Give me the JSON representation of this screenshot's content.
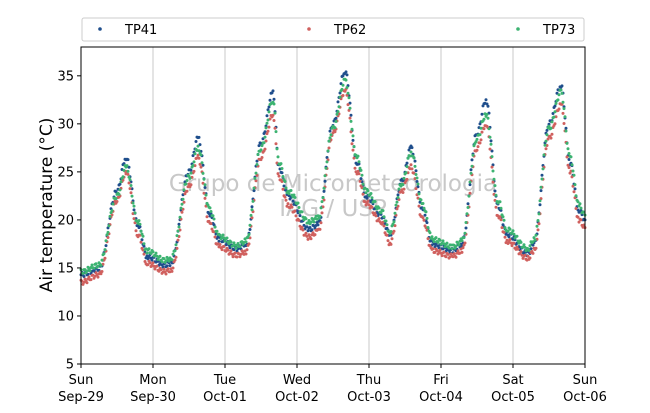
{
  "chart_data": {
    "type": "scatter",
    "title": "",
    "xlabel": "",
    "ylabel": "Air temperature (°C)",
    "ylim": [
      5,
      38
    ],
    "yticks": [
      5,
      10,
      15,
      20,
      25,
      30,
      35
    ],
    "xlim": [
      "2024-09-29 00:00",
      "2024-10-06 00:00"
    ],
    "x_tick_labels": [
      {
        "day": "Sun",
        "date": "Sep-29"
      },
      {
        "day": "Mon",
        "date": "Sep-30"
      },
      {
        "day": "Tue",
        "date": "Oct-01"
      },
      {
        "day": "Wed",
        "date": "Oct-02"
      },
      {
        "day": "Thu",
        "date": "Oct-03"
      },
      {
        "day": "Fri",
        "date": "Oct-04"
      },
      {
        "day": "Sat",
        "date": "Oct-05"
      },
      {
        "day": "Sun",
        "date": "Oct-06"
      }
    ],
    "grid": "vertical",
    "legend_placement": "top",
    "watermark": [
      "Grupo de Micrometeorologia",
      "IAG / USP"
    ],
    "series": [
      {
        "name": "TP41",
        "color": "#1f4e8c",
        "points": [
          [
            "2024-09-29 00:00",
            14.3
          ],
          [
            "2024-09-29 06:00",
            14.9
          ],
          [
            "2024-09-29 12:00",
            23.0
          ],
          [
            "2024-09-29 15:00",
            26.5
          ],
          [
            "2024-09-29 19:00",
            19.5
          ],
          [
            "2024-09-29 22:00",
            16.2
          ],
          [
            "2024-09-30 04:00",
            15.3
          ],
          [
            "2024-09-30 06:00",
            15.5
          ],
          [
            "2024-09-30 12:00",
            25.0
          ],
          [
            "2024-09-30 15:00",
            28.5
          ],
          [
            "2024-09-30 19:00",
            20.5
          ],
          [
            "2024-09-30 22:00",
            18.0
          ],
          [
            "2024-10-01 04:00",
            17.0
          ],
          [
            "2024-10-01 07:00",
            17.5
          ],
          [
            "2024-10-01 12:00",
            28.0
          ],
          [
            "2024-10-01 16:00",
            33.3
          ],
          [
            "2024-10-01 18:00",
            25.5
          ],
          [
            "2024-10-01 21:00",
            22.5
          ],
          [
            "2024-10-02 04:00",
            19.0
          ],
          [
            "2024-10-02 07:00",
            19.5
          ],
          [
            "2024-10-02 12:00",
            30.0
          ],
          [
            "2024-10-02 16:00",
            35.5
          ],
          [
            "2024-10-02 20:00",
            26.0
          ],
          [
            "2024-10-02 23:00",
            22.5
          ],
          [
            "2024-10-03 04:00",
            20.5
          ],
          [
            "2024-10-03 07:00",
            18.5
          ],
          [
            "2024-10-03 11:00",
            24.0
          ],
          [
            "2024-10-03 14:00",
            27.5
          ],
          [
            "2024-10-03 18:00",
            21.0
          ],
          [
            "2024-10-03 21:00",
            17.5
          ],
          [
            "2024-10-04 04:00",
            16.8
          ],
          [
            "2024-10-04 07:00",
            17.5
          ],
          [
            "2024-10-04 12:00",
            29.0
          ],
          [
            "2024-10-04 15:00",
            32.5
          ],
          [
            "2024-10-04 19:00",
            21.5
          ],
          [
            "2024-10-04 22:00",
            18.5
          ],
          [
            "2024-10-05 05:00",
            16.5
          ],
          [
            "2024-10-05 07:00",
            17.5
          ],
          [
            "2024-10-05 12:00",
            30.0
          ],
          [
            "2024-10-05 16:00",
            34.0
          ],
          [
            "2024-10-05 19:00",
            26.0
          ],
          [
            "2024-10-05 22:00",
            21.0
          ],
          [
            "2024-10-06 00:00",
            20.0
          ]
        ]
      },
      {
        "name": "TP62",
        "color": "#d0605e",
        "points": [
          [
            "2024-09-29 00:00",
            13.5
          ],
          [
            "2024-09-29 06:00",
            14.3
          ],
          [
            "2024-09-29 12:00",
            22.0
          ],
          [
            "2024-09-29 15:00",
            25.0
          ],
          [
            "2024-09-29 19:00",
            18.5
          ],
          [
            "2024-09-29 22:00",
            15.5
          ],
          [
            "2024-09-30 04:00",
            14.6
          ],
          [
            "2024-09-30 06:00",
            14.8
          ],
          [
            "2024-09-30 12:00",
            23.5
          ],
          [
            "2024-09-30 15:00",
            26.5
          ],
          [
            "2024-09-30 19:00",
            19.5
          ],
          [
            "2024-09-30 22:00",
            17.2
          ],
          [
            "2024-10-01 04:00",
            16.3
          ],
          [
            "2024-10-01 07:00",
            16.7
          ],
          [
            "2024-10-01 12:00",
            26.5
          ],
          [
            "2024-10-01 16:00",
            31.0
          ],
          [
            "2024-10-01 18:00",
            24.5
          ],
          [
            "2024-10-01 21:00",
            21.5
          ],
          [
            "2024-10-02 04:00",
            18.2
          ],
          [
            "2024-10-02 07:00",
            18.8
          ],
          [
            "2024-10-02 12:00",
            29.0
          ],
          [
            "2024-10-02 16:00",
            33.5
          ],
          [
            "2024-10-02 20:00",
            25.0
          ],
          [
            "2024-10-02 23:00",
            21.8
          ],
          [
            "2024-10-03 04:00",
            19.8
          ],
          [
            "2024-10-03 07:00",
            17.6
          ],
          [
            "2024-10-03 11:00",
            23.0
          ],
          [
            "2024-10-03 14:00",
            25.5
          ],
          [
            "2024-10-03 18:00",
            20.0
          ],
          [
            "2024-10-03 21:00",
            16.8
          ],
          [
            "2024-10-04 04:00",
            16.2
          ],
          [
            "2024-10-04 07:00",
            16.8
          ],
          [
            "2024-10-04 12:00",
            27.5
          ],
          [
            "2024-10-04 15:00",
            30.0
          ],
          [
            "2024-10-04 19:00",
            20.5
          ],
          [
            "2024-10-04 22:00",
            17.8
          ],
          [
            "2024-10-05 05:00",
            16.0
          ],
          [
            "2024-10-05 07:00",
            16.8
          ],
          [
            "2024-10-05 12:00",
            28.5
          ],
          [
            "2024-10-05 16:00",
            32.0
          ],
          [
            "2024-10-05 19:00",
            25.0
          ],
          [
            "2024-10-05 22:00",
            20.0
          ],
          [
            "2024-10-06 00:00",
            19.2
          ]
        ]
      },
      {
        "name": "TP73",
        "color": "#3cb371",
        "points": [
          [
            "2024-09-29 00:00",
            14.6
          ],
          [
            "2024-09-29 06:00",
            15.3
          ],
          [
            "2024-09-29 12:00",
            22.5
          ],
          [
            "2024-09-29 15:00",
            25.5
          ],
          [
            "2024-09-29 19:00",
            19.8
          ],
          [
            "2024-09-29 22:00",
            16.8
          ],
          [
            "2024-09-30 04:00",
            15.8
          ],
          [
            "2024-09-30 06:00",
            16.0
          ],
          [
            "2024-09-30 12:00",
            24.5
          ],
          [
            "2024-09-30 15:00",
            27.5
          ],
          [
            "2024-09-30 19:00",
            21.0
          ],
          [
            "2024-09-30 22:00",
            18.3
          ],
          [
            "2024-10-01 04:00",
            17.3
          ],
          [
            "2024-10-01 07:00",
            17.8
          ],
          [
            "2024-10-01 12:00",
            27.5
          ],
          [
            "2024-10-01 16:00",
            32.5
          ],
          [
            "2024-10-01 18:00",
            26.0
          ],
          [
            "2024-10-01 21:00",
            23.0
          ],
          [
            "2024-10-02 04:00",
            19.8
          ],
          [
            "2024-10-02 07:00",
            20.2
          ],
          [
            "2024-10-02 12:00",
            29.5
          ],
          [
            "2024-10-02 16:00",
            34.5
          ],
          [
            "2024-10-02 20:00",
            26.5
          ],
          [
            "2024-10-02 23:00",
            23.0
          ],
          [
            "2024-10-03 04:00",
            21.0
          ],
          [
            "2024-10-03 07:00",
            18.8
          ],
          [
            "2024-10-03 11:00",
            23.8
          ],
          [
            "2024-10-03 14:00",
            27.0
          ],
          [
            "2024-10-03 18:00",
            21.5
          ],
          [
            "2024-10-03 21:00",
            18.0
          ],
          [
            "2024-10-04 04:00",
            17.2
          ],
          [
            "2024-10-04 07:00",
            17.8
          ],
          [
            "2024-10-04 12:00",
            28.5
          ],
          [
            "2024-10-04 15:00",
            31.0
          ],
          [
            "2024-10-04 19:00",
            22.0
          ],
          [
            "2024-10-04 22:00",
            19.0
          ],
          [
            "2024-10-05 05:00",
            17.0
          ],
          [
            "2024-10-05 07:00",
            18.0
          ],
          [
            "2024-10-05 12:00",
            29.5
          ],
          [
            "2024-10-05 16:00",
            33.3
          ],
          [
            "2024-10-05 19:00",
            26.5
          ],
          [
            "2024-10-05 22:00",
            21.5
          ],
          [
            "2024-10-06 00:00",
            20.5
          ]
        ]
      }
    ]
  }
}
